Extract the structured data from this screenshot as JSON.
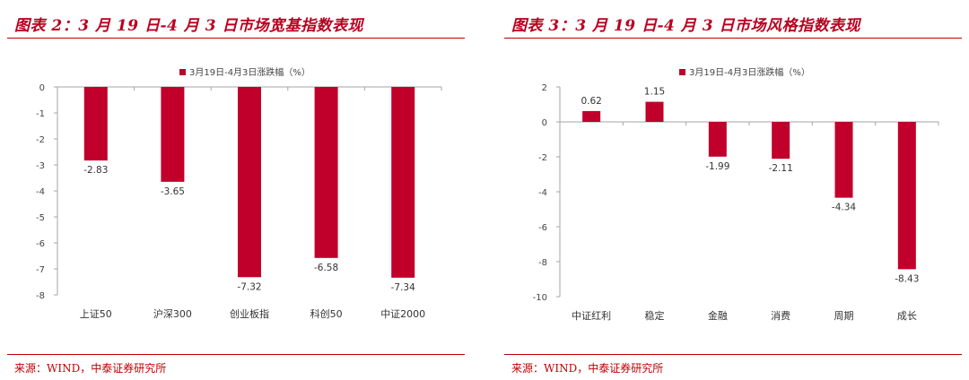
{
  "left": {
    "title": "图表 2：3 月 19 日-4 月 3 日市场宽基指数表现",
    "source": "来源：WIND，中泰证券研究所"
  },
  "right": {
    "title": "图表 3：3 月 19 日-4 月 3 日市场风格指数表现",
    "source": "来源：WIND，中泰证券研究所"
  },
  "colors": {
    "bar": "#c0002b",
    "accent": "#c00000",
    "axis": "#a6a6a6"
  },
  "chart_data": [
    {
      "type": "bar",
      "categories": [
        "上证50",
        "沪深300",
        "创业板指",
        "科创50",
        "中证2000"
      ],
      "series": [
        {
          "name": "3月19日-4月3日涨跌幅（%）",
          "values": [
            -2.83,
            -3.65,
            -7.32,
            -6.58,
            -7.34
          ]
        }
      ],
      "data_labels": [
        "-2.83",
        "-3.65",
        "-7.32",
        "-6.58",
        "-7.34"
      ],
      "ylim": [
        -8,
        0
      ],
      "yticks": [
        "0",
        "-1",
        "-2",
        "-3",
        "-4",
        "-5",
        "-6",
        "-7",
        "-8"
      ],
      "legend": "top"
    },
    {
      "type": "bar",
      "categories": [
        "中证红利",
        "稳定",
        "金融",
        "消费",
        "周期",
        "成长"
      ],
      "series": [
        {
          "name": "3月19日-4月3日涨跌幅（%）",
          "values": [
            0.62,
            1.15,
            -1.99,
            -2.11,
            -4.34,
            -8.43
          ]
        }
      ],
      "data_labels": [
        "0.62",
        "1.15",
        "-1.99",
        "-2.11",
        "-4.34",
        "-8.43"
      ],
      "ylim": [
        -10,
        2
      ],
      "yticks": [
        "2",
        "0",
        "-2",
        "-4",
        "-6",
        "-8",
        "-10"
      ],
      "legend": "top"
    }
  ]
}
